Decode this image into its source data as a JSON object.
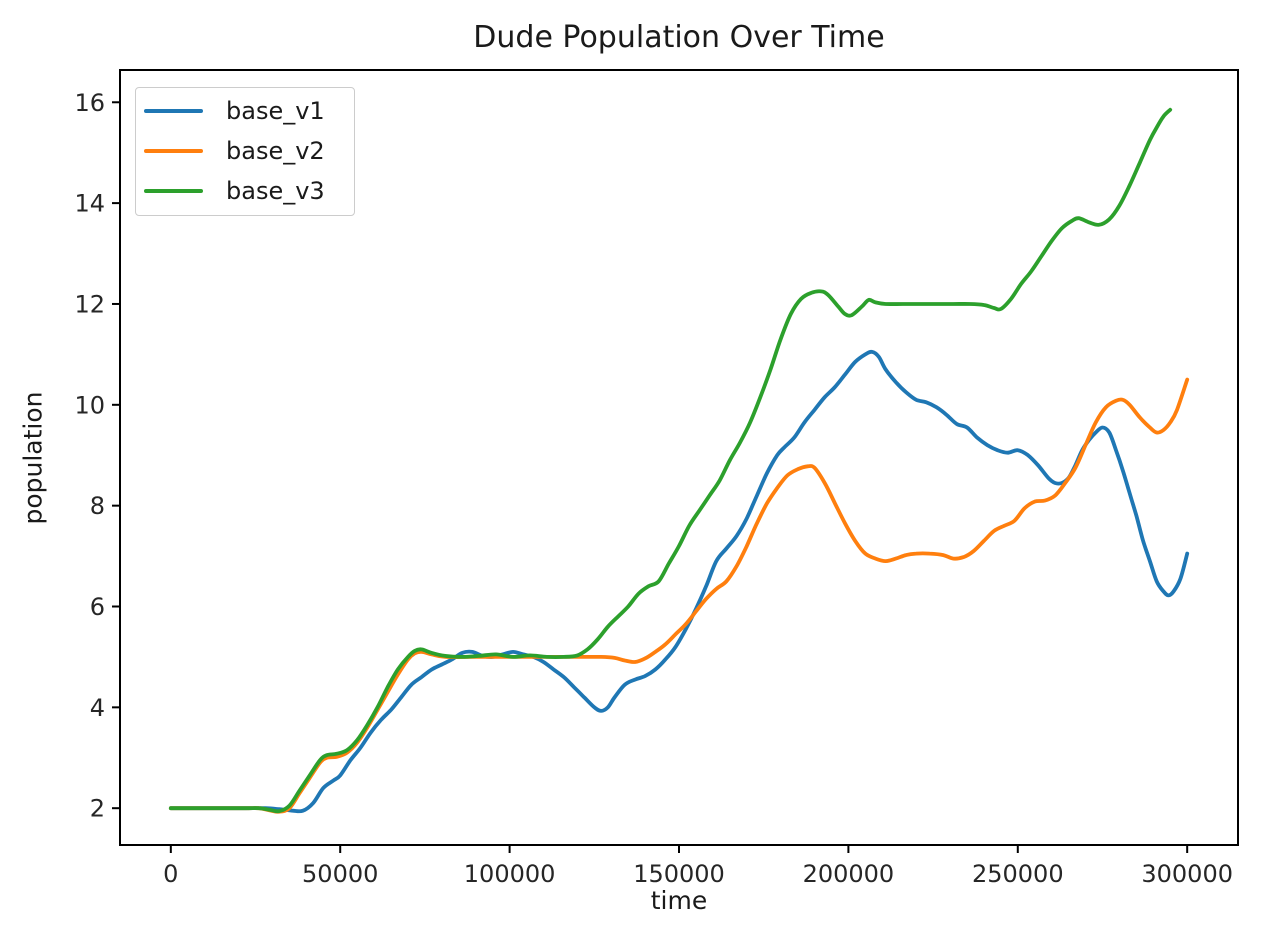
{
  "chart_data": {
    "type": "line",
    "title": "Dude Population Over Time",
    "xlabel": "time",
    "ylabel": "population",
    "xlim": [
      -15000,
      315000
    ],
    "ylim": [
      1.27,
      16.64
    ],
    "x_ticks": [
      0,
      50000,
      100000,
      150000,
      200000,
      250000,
      300000
    ],
    "y_ticks": [
      2,
      4,
      6,
      8,
      10,
      12,
      14,
      16
    ],
    "grid": false,
    "legend_position": "upper left",
    "axis_color": "#000000",
    "tick_label_color": "#262626",
    "line_width": 3.8,
    "series": [
      {
        "name": "base_v1",
        "color": "#1f77b4",
        "points": [
          [
            0,
            2
          ],
          [
            12000,
            2
          ],
          [
            22000,
            2
          ],
          [
            28000,
            2
          ],
          [
            32000,
            1.98
          ],
          [
            36000,
            1.95
          ],
          [
            39000,
            1.95
          ],
          [
            42000,
            2.1
          ],
          [
            45000,
            2.4
          ],
          [
            48000,
            2.55
          ],
          [
            50000,
            2.65
          ],
          [
            53000,
            2.95
          ],
          [
            56000,
            3.2
          ],
          [
            59000,
            3.5
          ],
          [
            62000,
            3.75
          ],
          [
            65000,
            3.95
          ],
          [
            68000,
            4.2
          ],
          [
            71000,
            4.45
          ],
          [
            74000,
            4.6
          ],
          [
            77000,
            4.75
          ],
          [
            80000,
            4.85
          ],
          [
            83000,
            4.95
          ],
          [
            86000,
            5.08
          ],
          [
            89000,
            5.1
          ],
          [
            92000,
            5.02
          ],
          [
            95000,
            5.0
          ],
          [
            98000,
            5.05
          ],
          [
            101000,
            5.1
          ],
          [
            104000,
            5.05
          ],
          [
            107000,
            5.0
          ],
          [
            110000,
            4.9
          ],
          [
            113000,
            4.75
          ],
          [
            116000,
            4.6
          ],
          [
            119000,
            4.4
          ],
          [
            122000,
            4.2
          ],
          [
            125000,
            4.0
          ],
          [
            127000,
            3.93
          ],
          [
            129000,
            4.0
          ],
          [
            131000,
            4.2
          ],
          [
            134000,
            4.45
          ],
          [
            137000,
            4.55
          ],
          [
            140000,
            4.62
          ],
          [
            143000,
            4.75
          ],
          [
            146000,
            4.95
          ],
          [
            149000,
            5.2
          ],
          [
            152000,
            5.55
          ],
          [
            155000,
            5.95
          ],
          [
            158000,
            6.4
          ],
          [
            161000,
            6.9
          ],
          [
            164000,
            7.15
          ],
          [
            167000,
            7.4
          ],
          [
            170000,
            7.75
          ],
          [
            173000,
            8.2
          ],
          [
            176000,
            8.65
          ],
          [
            179000,
            9.0
          ],
          [
            181000,
            9.15
          ],
          [
            184000,
            9.35
          ],
          [
            187000,
            9.65
          ],
          [
            190000,
            9.9
          ],
          [
            193000,
            10.15
          ],
          [
            196000,
            10.35
          ],
          [
            199000,
            10.6
          ],
          [
            202000,
            10.85
          ],
          [
            205000,
            11.0
          ],
          [
            207000,
            11.05
          ],
          [
            209000,
            10.95
          ],
          [
            211000,
            10.7
          ],
          [
            214000,
            10.45
          ],
          [
            217000,
            10.25
          ],
          [
            220000,
            10.1
          ],
          [
            223000,
            10.05
          ],
          [
            226000,
            9.95
          ],
          [
            229000,
            9.8
          ],
          [
            232000,
            9.62
          ],
          [
            235000,
            9.55
          ],
          [
            238000,
            9.35
          ],
          [
            241000,
            9.2
          ],
          [
            244000,
            9.1
          ],
          [
            247000,
            9.05
          ],
          [
            250000,
            9.1
          ],
          [
            253000,
            9.0
          ],
          [
            256000,
            8.8
          ],
          [
            259000,
            8.55
          ],
          [
            261000,
            8.45
          ],
          [
            263000,
            8.45
          ],
          [
            265000,
            8.55
          ],
          [
            267000,
            8.8
          ],
          [
            269000,
            9.1
          ],
          [
            271000,
            9.3
          ],
          [
            273000,
            9.45
          ],
          [
            275000,
            9.55
          ],
          [
            277000,
            9.45
          ],
          [
            279000,
            9.1
          ],
          [
            281000,
            8.7
          ],
          [
            283000,
            8.25
          ],
          [
            285000,
            7.8
          ],
          [
            287000,
            7.3
          ],
          [
            289000,
            6.9
          ],
          [
            291000,
            6.5
          ],
          [
            293000,
            6.3
          ],
          [
            294500,
            6.22
          ],
          [
            296000,
            6.3
          ],
          [
            298000,
            6.55
          ],
          [
            300000,
            7.05
          ]
        ]
      },
      {
        "name": "base_v2",
        "color": "#ff7f0e",
        "points": [
          [
            0,
            2
          ],
          [
            12000,
            2
          ],
          [
            22000,
            2
          ],
          [
            26000,
            2
          ],
          [
            29000,
            1.96
          ],
          [
            32000,
            1.93
          ],
          [
            35000,
            2.0
          ],
          [
            38000,
            2.3
          ],
          [
            41000,
            2.6
          ],
          [
            44000,
            2.9
          ],
          [
            46000,
            3.0
          ],
          [
            49000,
            3.02
          ],
          [
            52000,
            3.1
          ],
          [
            55000,
            3.3
          ],
          [
            58000,
            3.6
          ],
          [
            61000,
            3.95
          ],
          [
            64000,
            4.3
          ],
          [
            67000,
            4.65
          ],
          [
            70000,
            4.95
          ],
          [
            72000,
            5.07
          ],
          [
            74000,
            5.1
          ],
          [
            77000,
            5.05
          ],
          [
            81000,
            5.0
          ],
          [
            90000,
            5.0
          ],
          [
            100000,
            5.0
          ],
          [
            110000,
            5.0
          ],
          [
            120000,
            5.0
          ],
          [
            127000,
            5.0
          ],
          [
            131000,
            4.98
          ],
          [
            134000,
            4.93
          ],
          [
            137000,
            4.9
          ],
          [
            140000,
            4.97
          ],
          [
            143000,
            5.1
          ],
          [
            146000,
            5.25
          ],
          [
            149000,
            5.45
          ],
          [
            152000,
            5.65
          ],
          [
            155000,
            5.9
          ],
          [
            158000,
            6.15
          ],
          [
            161000,
            6.35
          ],
          [
            164000,
            6.5
          ],
          [
            167000,
            6.8
          ],
          [
            170000,
            7.2
          ],
          [
            173000,
            7.65
          ],
          [
            176000,
            8.05
          ],
          [
            179000,
            8.35
          ],
          [
            182000,
            8.6
          ],
          [
            185000,
            8.72
          ],
          [
            188000,
            8.78
          ],
          [
            190000,
            8.75
          ],
          [
            193000,
            8.45
          ],
          [
            196000,
            8.05
          ],
          [
            199000,
            7.65
          ],
          [
            202000,
            7.3
          ],
          [
            205000,
            7.05
          ],
          [
            208000,
            6.95
          ],
          [
            211000,
            6.9
          ],
          [
            214000,
            6.95
          ],
          [
            217000,
            7.02
          ],
          [
            220000,
            7.05
          ],
          [
            224000,
            7.05
          ],
          [
            228000,
            7.02
          ],
          [
            231000,
            6.95
          ],
          [
            234000,
            6.98
          ],
          [
            237000,
            7.1
          ],
          [
            240000,
            7.3
          ],
          [
            243000,
            7.5
          ],
          [
            246000,
            7.6
          ],
          [
            249000,
            7.7
          ],
          [
            252000,
            7.95
          ],
          [
            255000,
            8.08
          ],
          [
            258000,
            8.1
          ],
          [
            261000,
            8.2
          ],
          [
            264000,
            8.45
          ],
          [
            267000,
            8.75
          ],
          [
            270000,
            9.2
          ],
          [
            273000,
            9.65
          ],
          [
            276000,
            9.95
          ],
          [
            279000,
            10.08
          ],
          [
            281000,
            10.1
          ],
          [
            283000,
            10.0
          ],
          [
            286000,
            9.75
          ],
          [
            289000,
            9.55
          ],
          [
            291000,
            9.45
          ],
          [
            293000,
            9.5
          ],
          [
            295000,
            9.65
          ],
          [
            297000,
            9.9
          ],
          [
            300000,
            10.5
          ]
        ]
      },
      {
        "name": "base_v3",
        "color": "#2ca02c",
        "points": [
          [
            0,
            2
          ],
          [
            12000,
            2
          ],
          [
            22000,
            2
          ],
          [
            26000,
            2
          ],
          [
            29000,
            1.97
          ],
          [
            32000,
            1.94
          ],
          [
            35000,
            2.05
          ],
          [
            38000,
            2.35
          ],
          [
            41000,
            2.65
          ],
          [
            44000,
            2.95
          ],
          [
            46000,
            3.05
          ],
          [
            49000,
            3.08
          ],
          [
            52000,
            3.15
          ],
          [
            55000,
            3.35
          ],
          [
            58000,
            3.65
          ],
          [
            61000,
            4.0
          ],
          [
            64000,
            4.4
          ],
          [
            67000,
            4.75
          ],
          [
            70000,
            5.0
          ],
          [
            72000,
            5.12
          ],
          [
            74000,
            5.15
          ],
          [
            77000,
            5.08
          ],
          [
            81000,
            5.02
          ],
          [
            86000,
            5.0
          ],
          [
            91000,
            5.02
          ],
          [
            96000,
            5.05
          ],
          [
            101000,
            5.0
          ],
          [
            106000,
            5.03
          ],
          [
            111000,
            5.0
          ],
          [
            116000,
            5.0
          ],
          [
            120000,
            5.03
          ],
          [
            123000,
            5.15
          ],
          [
            126000,
            5.35
          ],
          [
            129000,
            5.6
          ],
          [
            132000,
            5.8
          ],
          [
            135000,
            6.0
          ],
          [
            138000,
            6.25
          ],
          [
            141000,
            6.4
          ],
          [
            144000,
            6.5
          ],
          [
            147000,
            6.85
          ],
          [
            150000,
            7.2
          ],
          [
            153000,
            7.6
          ],
          [
            156000,
            7.9
          ],
          [
            159000,
            8.2
          ],
          [
            162000,
            8.5
          ],
          [
            165000,
            8.9
          ],
          [
            168000,
            9.25
          ],
          [
            171000,
            9.65
          ],
          [
            174000,
            10.15
          ],
          [
            177000,
            10.7
          ],
          [
            180000,
            11.3
          ],
          [
            183000,
            11.8
          ],
          [
            186000,
            12.1
          ],
          [
            189000,
            12.22
          ],
          [
            192000,
            12.25
          ],
          [
            194000,
            12.18
          ],
          [
            197000,
            11.95
          ],
          [
            199000,
            11.8
          ],
          [
            201000,
            11.78
          ],
          [
            204000,
            11.95
          ],
          [
            206000,
            12.08
          ],
          [
            208000,
            12.03
          ],
          [
            211000,
            12.0
          ],
          [
            216000,
            12.0
          ],
          [
            221000,
            12.0
          ],
          [
            226000,
            12.0
          ],
          [
            231000,
            12.0
          ],
          [
            236000,
            12.0
          ],
          [
            240000,
            11.98
          ],
          [
            243000,
            11.92
          ],
          [
            245000,
            11.9
          ],
          [
            248000,
            12.1
          ],
          [
            251000,
            12.4
          ],
          [
            254000,
            12.65
          ],
          [
            257000,
            12.95
          ],
          [
            260000,
            13.25
          ],
          [
            263000,
            13.5
          ],
          [
            266000,
            13.65
          ],
          [
            268000,
            13.7
          ],
          [
            271000,
            13.62
          ],
          [
            274000,
            13.57
          ],
          [
            277000,
            13.68
          ],
          [
            280000,
            13.95
          ],
          [
            283000,
            14.35
          ],
          [
            286000,
            14.8
          ],
          [
            289000,
            15.25
          ],
          [
            291000,
            15.5
          ],
          [
            293000,
            15.72
          ],
          [
            295000,
            15.85
          ]
        ]
      }
    ]
  }
}
